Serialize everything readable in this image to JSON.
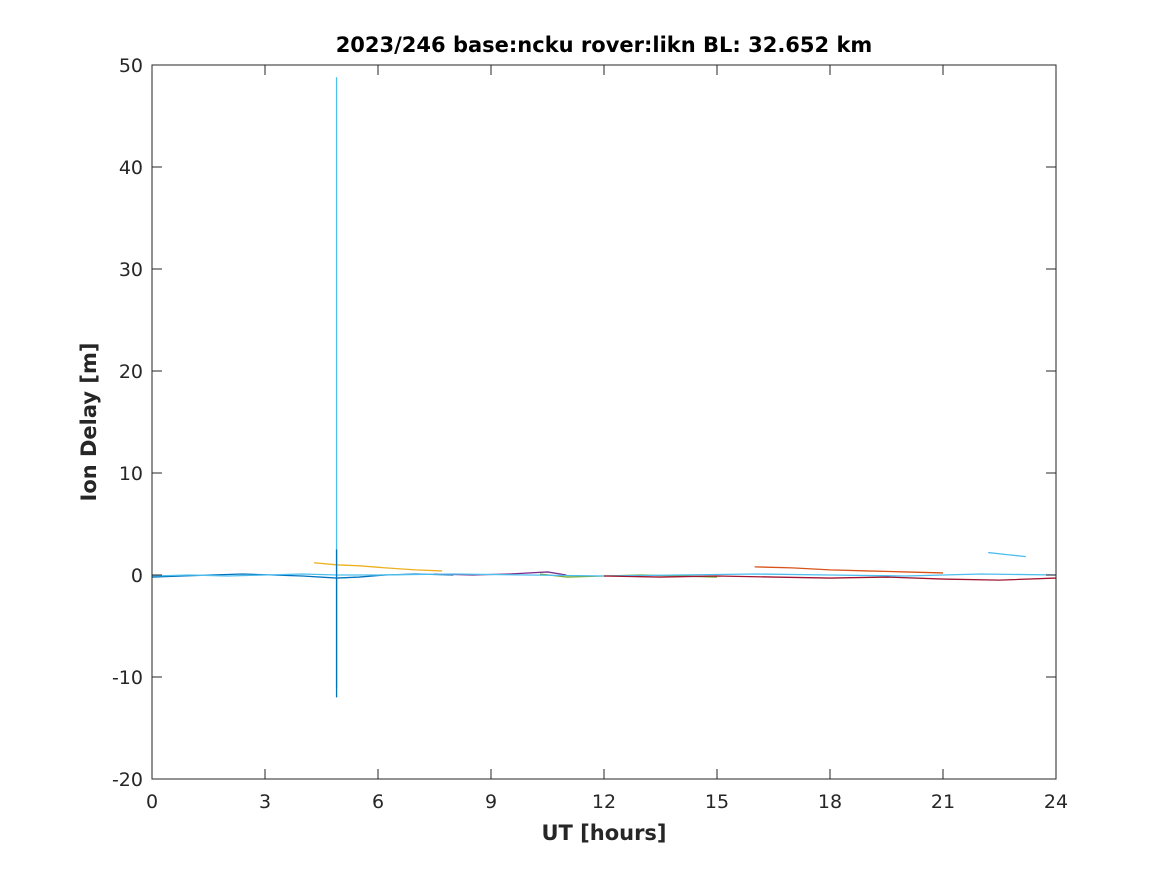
{
  "chart_data": {
    "type": "line",
    "title": "2023/246 base:ncku rover:likn BL: 32.652 km",
    "xlabel": "UT [hours]",
    "ylabel": "Ion Delay [m]",
    "xlim": [
      0,
      24
    ],
    "ylim": [
      -20,
      50
    ],
    "xticks": [
      0,
      3,
      6,
      9,
      12,
      15,
      18,
      21,
      24
    ],
    "yticks": [
      -20,
      -10,
      0,
      10,
      20,
      30,
      40,
      50
    ],
    "xtick_labels": [
      "0",
      "3",
      "6",
      "9",
      "12",
      "15",
      "18",
      "21",
      "24"
    ],
    "ytick_labels": [
      "-20",
      "-10",
      "0",
      "10",
      "20",
      "30",
      "40",
      "50"
    ],
    "grid": false,
    "box": true,
    "legend": "none",
    "series_colors": [
      "#0072BD",
      "#D95319",
      "#EDB120",
      "#7E2F8E",
      "#77AC30",
      "#4DBEEE",
      "#A2142F"
    ],
    "series": [
      {
        "x": [
          0,
          0.8,
          1.6,
          2.4,
          3.2,
          4.0,
          4.9,
          5.5,
          6.2,
          7.0,
          8.0
        ],
        "y": [
          -0.2,
          -0.1,
          0.0,
          0.1,
          0.0,
          -0.1,
          -0.3,
          -0.2,
          0.0,
          0.1,
          0.0
        ]
      },
      {
        "x": [
          16.0,
          17.0,
          18.0,
          19.0,
          20.0,
          21.0
        ],
        "y": [
          0.8,
          0.7,
          0.5,
          0.4,
          0.3,
          0.2
        ]
      },
      {
        "x": [
          4.3,
          4.9,
          5.5,
          6.2,
          7.0,
          7.7
        ],
        "y": [
          1.2,
          1.0,
          0.9,
          0.7,
          0.5,
          0.4
        ]
      },
      {
        "x": [
          7.5,
          8.5,
          9.5,
          10.5,
          11.0
        ],
        "y": [
          0.1,
          0.0,
          0.1,
          0.3,
          0.0
        ]
      },
      {
        "x": [
          10.3,
          11.0,
          12.0,
          13.0,
          14.0,
          15.0
        ],
        "y": [
          0.1,
          -0.2,
          -0.1,
          0.0,
          -0.1,
          -0.2
        ]
      },
      {
        "x": [
          0,
          1.0,
          2.0,
          3.0,
          4.0,
          4.9,
          6.0,
          8.0,
          10.0,
          12.0,
          14.0,
          16.0,
          18.0,
          20.0,
          22.0,
          24.0
        ],
        "y": [
          -0.1,
          0.0,
          -0.1,
          0.0,
          0.1,
          0.0,
          0.0,
          0.1,
          0.0,
          -0.1,
          0.0,
          0.1,
          0.0,
          -0.1,
          0.1,
          0.0
        ]
      },
      {
        "x": [
          12.0,
          13.5,
          15.0,
          16.5,
          18.0,
          19.5,
          21.0,
          22.5,
          24.0
        ],
        "y": [
          -0.1,
          -0.2,
          -0.1,
          -0.2,
          -0.3,
          -0.2,
          -0.4,
          -0.5,
          -0.3
        ]
      },
      {
        "x": [
          22.2,
          22.7,
          23.2
        ],
        "y": [
          2.2,
          2.0,
          1.8
        ]
      },
      {
        "x": [
          4.9,
          4.9
        ],
        "y": [
          -11.0,
          48.8
        ]
      },
      {
        "x": [
          4.9,
          4.9
        ],
        "y": [
          -12.0,
          2.5
        ]
      }
    ]
  }
}
